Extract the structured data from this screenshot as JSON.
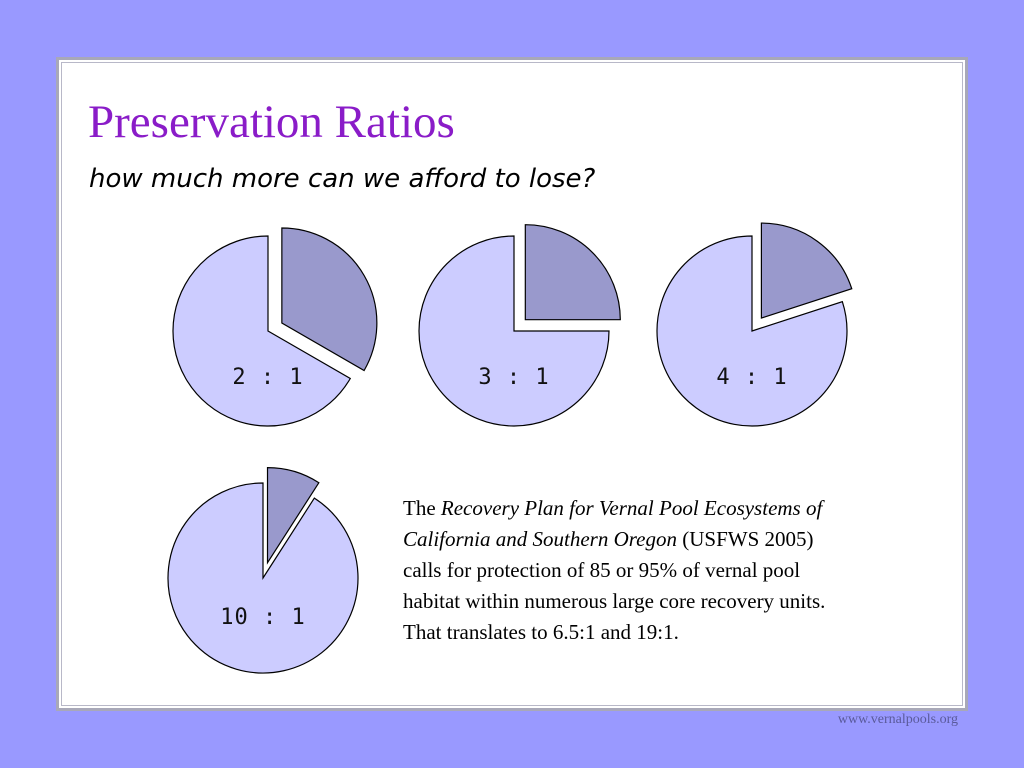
{
  "slide": {
    "title": "Preservation Ratios",
    "subtitle": "how much more can we afford to lose?",
    "note": {
      "prefix": "The ",
      "italic": "Recovery Plan for Vernal Pool Ecosystems of California and Southern Oregon",
      "line1_italic": "Recovery Plan for Vernal Pool Ecosystems of",
      "line2_italic": "California and Southern Oregon",
      "line2_rest": " (USFWS 2005)",
      "line3": "calls for protection of 85 or 95% of vernal pool",
      "line4": "habitat within numerous large core recovery units.",
      "line5": "That translates to 6.5:1 and 19:1."
    },
    "footer": "www.vernalpools.org"
  },
  "colors": {
    "background": "#9999ff",
    "title": "#8a1cc8",
    "pie_main": "#ccccff",
    "pie_slice": "#9999cc",
    "outline": "#000000"
  },
  "chart_data": [
    {
      "type": "pie",
      "label": "2 : 1",
      "values": [
        2,
        1
      ],
      "exploded_slice_index": 1
    },
    {
      "type": "pie",
      "label": "3 : 1",
      "values": [
        3,
        1
      ],
      "exploded_slice_index": 1
    },
    {
      "type": "pie",
      "label": "4 : 1",
      "values": [
        4,
        1
      ],
      "exploded_slice_index": 1
    },
    {
      "type": "pie",
      "label": "10 : 1",
      "values": [
        10,
        1
      ],
      "exploded_slice_index": 1
    }
  ]
}
